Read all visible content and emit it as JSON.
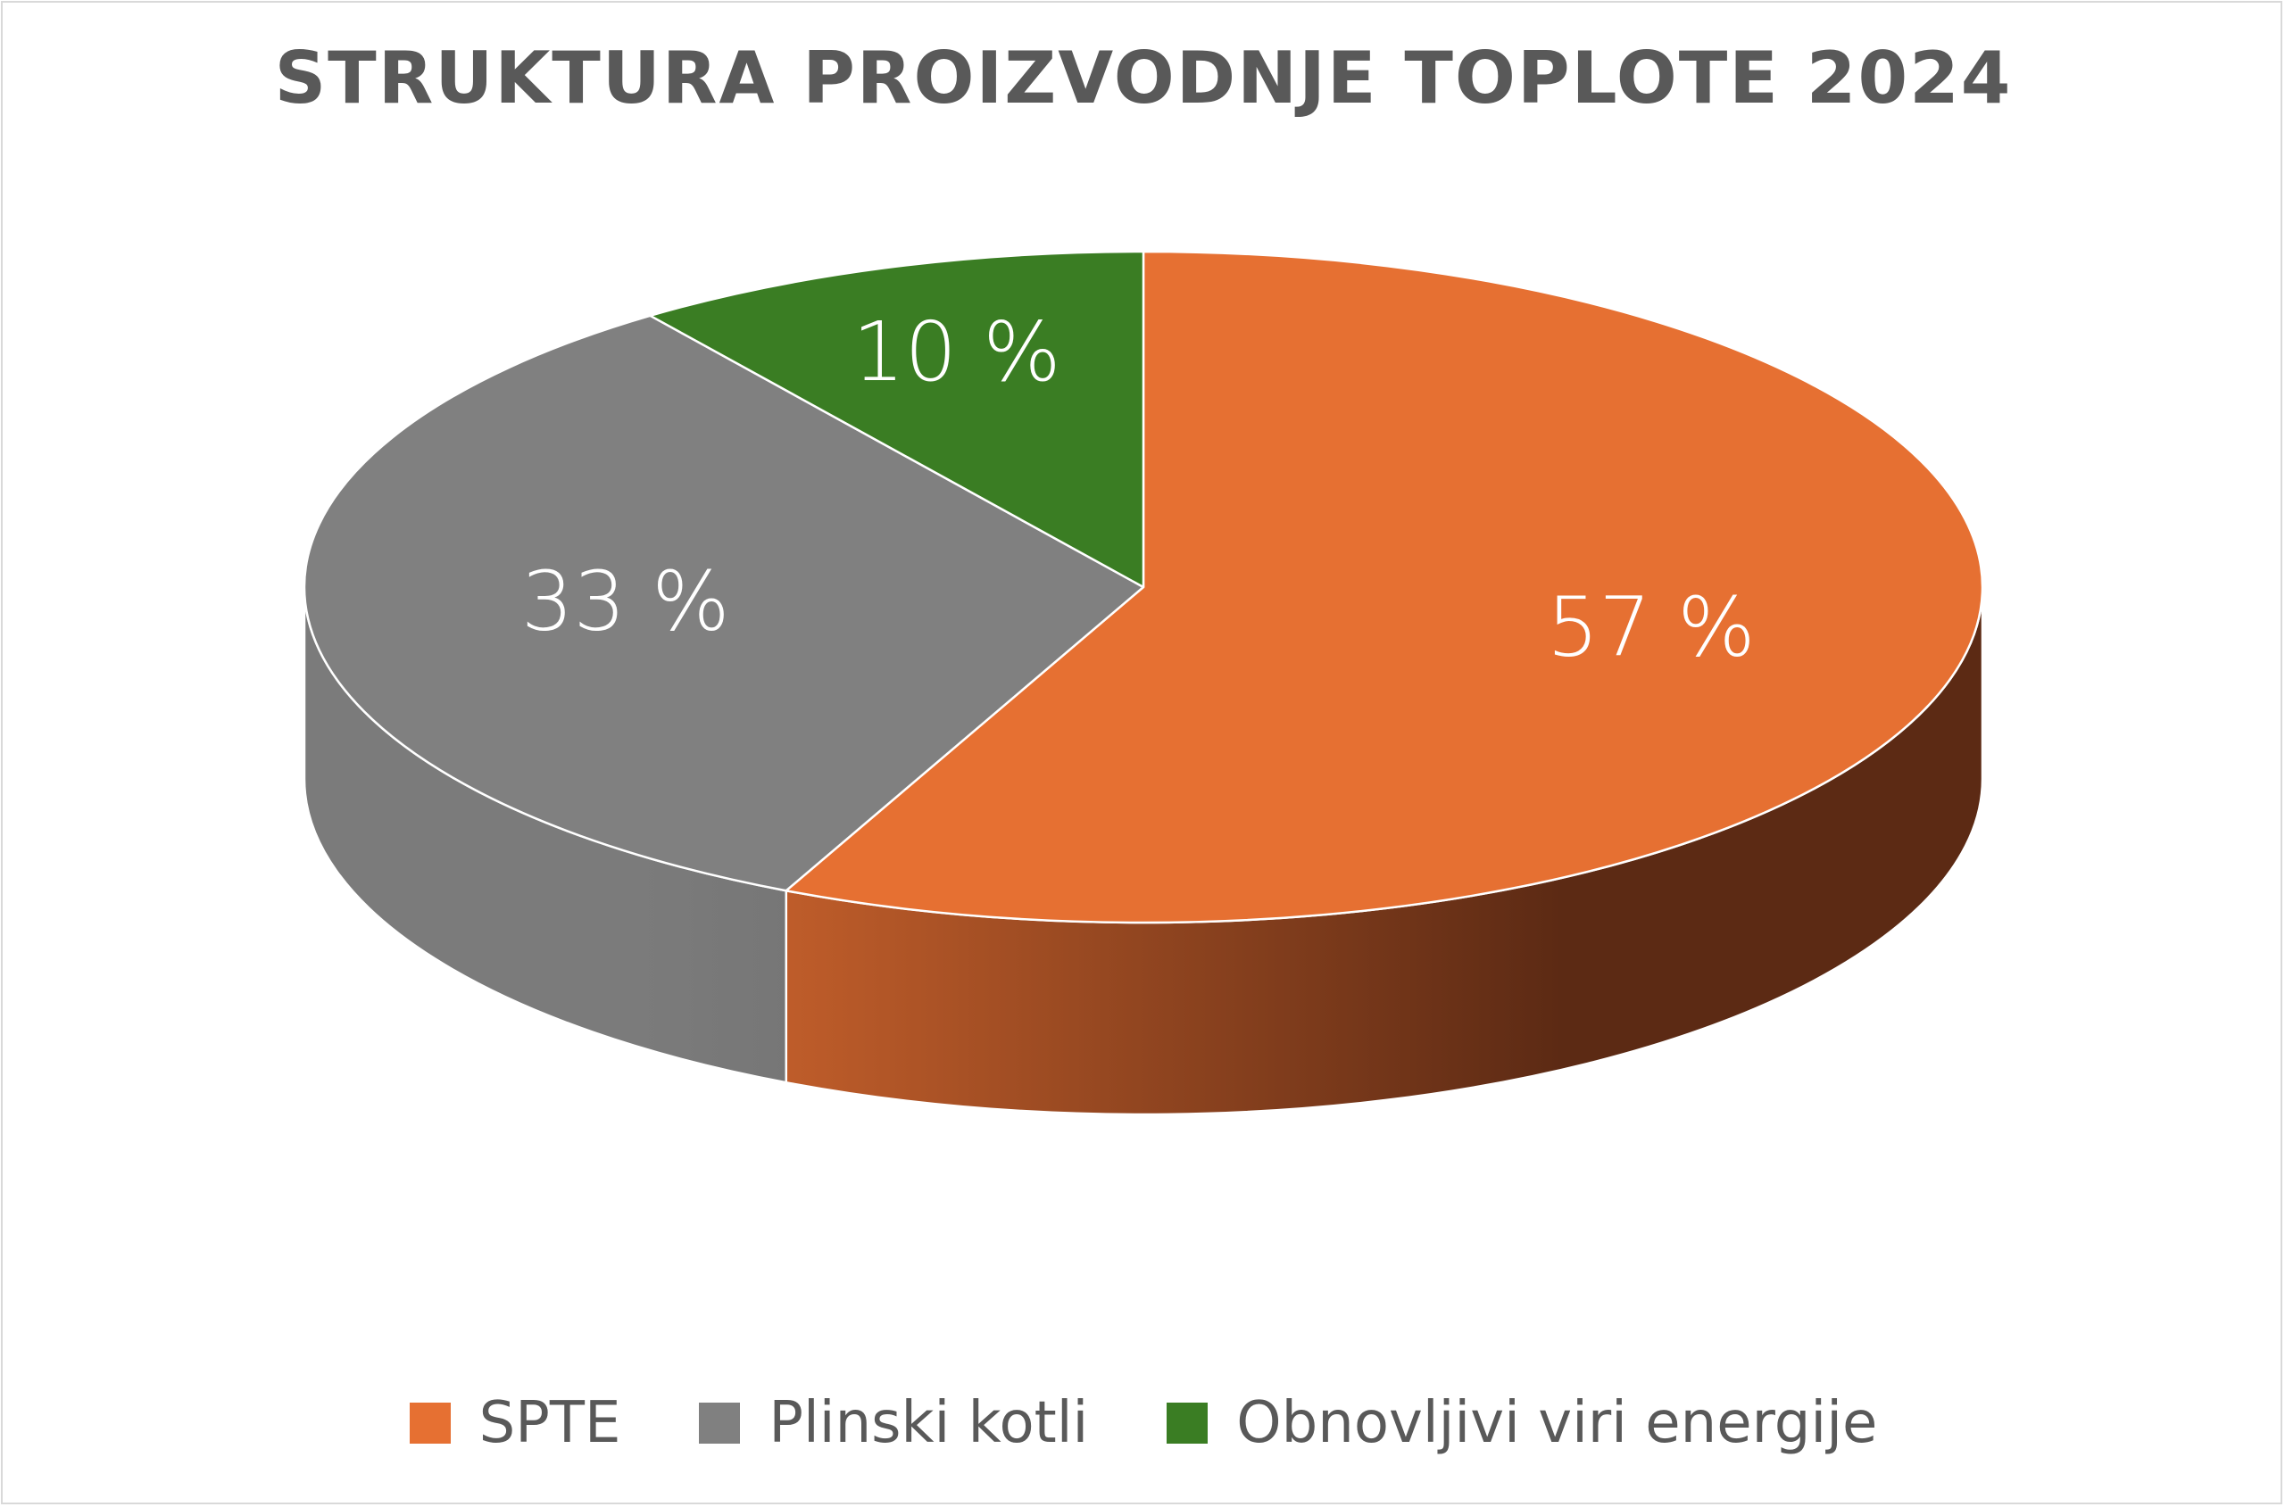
{
  "chart_data": {
    "type": "pie",
    "title": "STRUKTURA PROIZVODNJE TOPLOTE 2024",
    "categories": [
      "SPTE",
      "Plinski kotli",
      "Obnovljivi viri energije"
    ],
    "values": [
      57,
      33,
      10
    ],
    "data_labels": [
      "57 %",
      "33 %",
      "10 %"
    ],
    "colors": [
      "#E67032",
      "#808080",
      "#3A7D23"
    ],
    "side_colors": [
      "#5C2A14",
      "#5E5E5E",
      "#244E16"
    ],
    "legend_position": "bottom",
    "style": "3d"
  }
}
